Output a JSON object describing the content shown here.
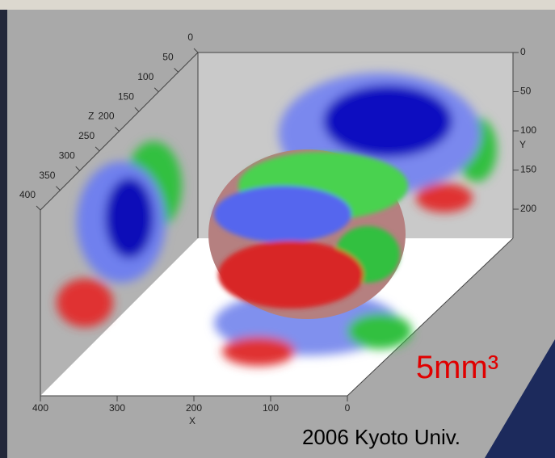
{
  "axes": {
    "x": {
      "label": "X",
      "ticks": [
        400,
        300,
        200,
        100,
        0
      ]
    },
    "y": {
      "label": "Y",
      "ticks": [
        0,
        50,
        100,
        150,
        200
      ]
    },
    "z": {
      "label": "Z",
      "ticks": [
        0,
        50,
        100,
        150,
        200,
        250,
        300,
        350,
        400
      ]
    }
  },
  "annotation": "5mm³",
  "credit": "2006 Kyoto Univ."
}
